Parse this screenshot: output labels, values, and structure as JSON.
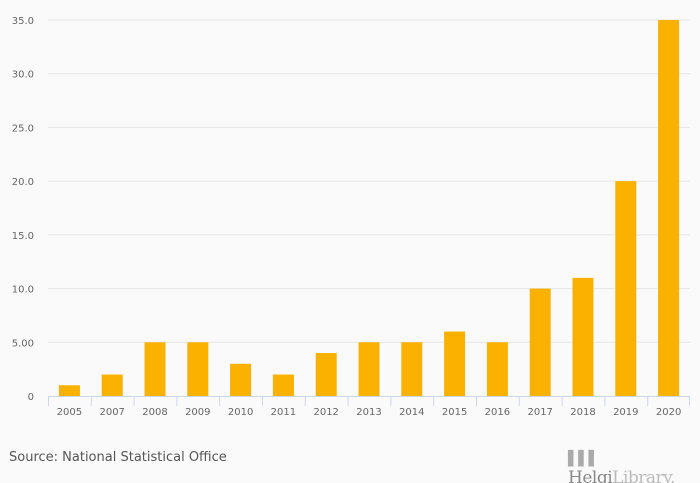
{
  "chart_data": {
    "type": "bar",
    "title": "",
    "xlabel": "",
    "ylabel": "",
    "categories": [
      "2005",
      "2007",
      "2008",
      "2009",
      "2010",
      "2011",
      "2012",
      "2013",
      "2014",
      "2015",
      "2016",
      "2017",
      "2018",
      "2019",
      "2020"
    ],
    "values": [
      1,
      2,
      5,
      5,
      3,
      2,
      4,
      5,
      5,
      6,
      5,
      10,
      11,
      20,
      35
    ],
    "ylim": [
      0,
      35
    ],
    "yticks": [
      0,
      5,
      10,
      15,
      20,
      25,
      30,
      35
    ],
    "ytick_labels": [
      "0",
      "5.00",
      "10.0",
      "15.0",
      "20.0",
      "25.0",
      "30.0",
      "35.0"
    ],
    "grid": true,
    "bar_color": "#fbb100"
  },
  "source": "Source: National Statistical Office",
  "logo": {
    "part1": "Helgi",
    "part2": "Library."
  }
}
